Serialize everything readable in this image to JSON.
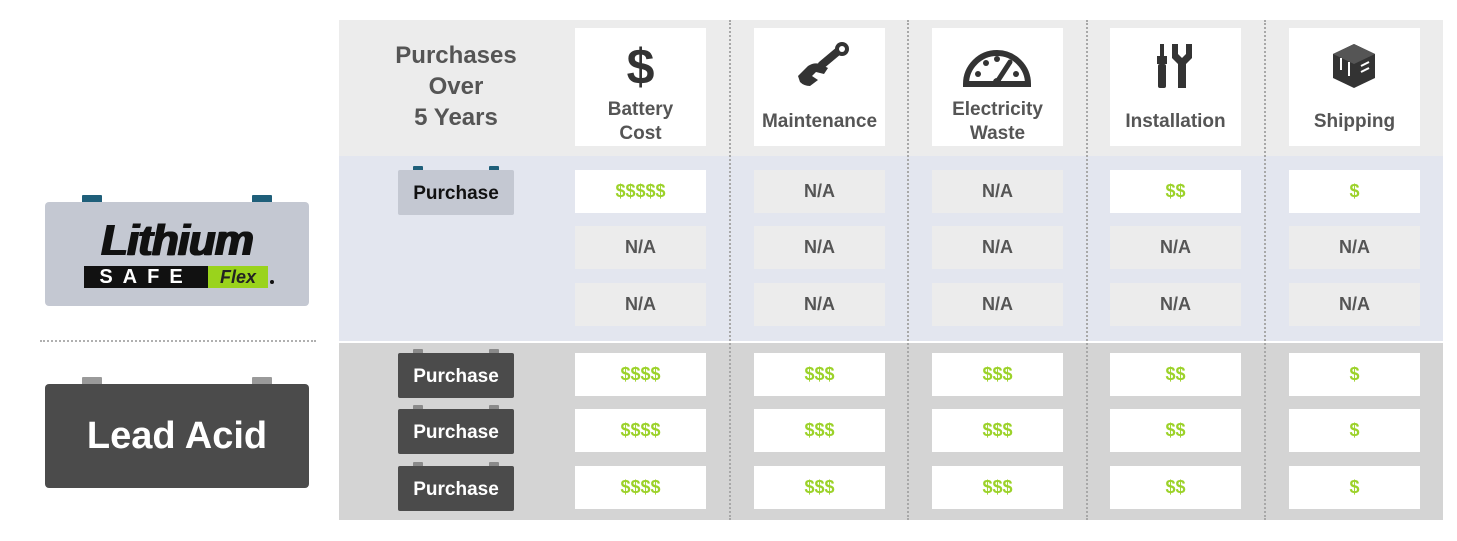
{
  "corner_title": [
    "Purchases",
    "Over",
    "5 Years"
  ],
  "columns": [
    {
      "label": [
        "Battery",
        "Cost"
      ],
      "icon": "dollar-sign-icon"
    },
    {
      "label": [
        "Maintenance"
      ],
      "icon": "wrench-hand-icon"
    },
    {
      "label": [
        "Electricity",
        "Waste"
      ],
      "icon": "gauge-icon"
    },
    {
      "label": [
        "Installation"
      ],
      "icon": "screwdriver-wrench-icon"
    },
    {
      "label": [
        "Shipping"
      ],
      "icon": "package-icon"
    }
  ],
  "lithium": {
    "logo_word": "Lithium",
    "logo_bar": "SAFE",
    "logo_flex": "Flex",
    "purchase_label": "Purchase",
    "rows": [
      [
        "$$$$$",
        "N/A",
        "N/A",
        "$$",
        "$"
      ],
      [
        "N/A",
        "N/A",
        "N/A",
        "N/A",
        "N/A"
      ],
      [
        "N/A",
        "N/A",
        "N/A",
        "N/A",
        "N/A"
      ]
    ]
  },
  "lead_acid": {
    "name": "Lead Acid",
    "purchase_labels": [
      "Purchase",
      "Purchase",
      "Purchase"
    ],
    "rows": [
      [
        "$$$$",
        "$$$",
        "$$$",
        "$$",
        "$"
      ],
      [
        "$$$$",
        "$$$",
        "$$$",
        "$$",
        "$"
      ],
      [
        "$$$$",
        "$$$",
        "$$$",
        "$$",
        "$"
      ]
    ]
  },
  "colors": {
    "cost_green": "#9cd22a",
    "lithium_band": "#e3e6ef",
    "lead_band": "#d4d4d4",
    "lead_battery": "#4b4b4b",
    "lithium_battery": "#c4c8d2",
    "terminal_blue": "#1f5f7a",
    "flex_green": "#9ad31c"
  }
}
